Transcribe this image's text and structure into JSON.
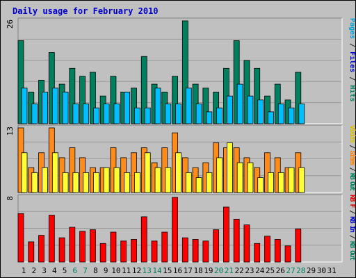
{
  "chart_data": {
    "type": "bar",
    "title": "Daily usage for February 2010",
    "categories": [
      "1",
      "2",
      "3",
      "4",
      "5",
      "6",
      "7",
      "8",
      "9",
      "10",
      "11",
      "12",
      "13",
      "14",
      "15",
      "16",
      "17",
      "18",
      "19",
      "20",
      "21",
      "22",
      "23",
      "24",
      "25",
      "26",
      "27",
      "28",
      "29",
      "30",
      "31"
    ],
    "weekend_days": [
      "6",
      "7",
      "13",
      "14",
      "20",
      "21",
      "27",
      "28"
    ],
    "panels": [
      {
        "ymax": 26,
        "ymax_label": "26",
        "legend": [
          {
            "text": "Pages",
            "color": "#00a0d8"
          },
          {
            "text": " / ",
            "color": "#222222"
          },
          {
            "text": "Files",
            "color": "#0000cc"
          },
          {
            "text": " / ",
            "color": "#222222"
          },
          {
            "text": "Hits",
            "color": "#008060"
          }
        ],
        "series": [
          {
            "name": "Hits",
            "color": "#00805e",
            "values": [
              21,
              8,
              11,
              18,
              10,
              14,
              12,
              13,
              7,
              12,
              8,
              9,
              17,
              10,
              8,
              12,
              26,
              10,
              9,
              8,
              14,
              21,
              16,
              14,
              7,
              10,
              6,
              13,
              null,
              null,
              null
            ]
          },
          {
            "name": "Files",
            "color": "#00bfff",
            "values": [
              9,
              5,
              8,
              9,
              8,
              5,
              5,
              4,
              5,
              5,
              8,
              4,
              4,
              9,
              5,
              5,
              9,
              5,
              3,
              4,
              7,
              10,
              7,
              6,
              3,
              5,
              4,
              5,
              null,
              null,
              null
            ]
          }
        ]
      },
      {
        "ymax": 13,
        "ymax_label": "13",
        "legend": [
          {
            "text": "Visits",
            "color": "#d8c000"
          },
          {
            "text": " / ",
            "color": "#222222"
          },
          {
            "text": "Sites",
            "color": "#ff7f00"
          },
          {
            "text": " / ",
            "color": "#222222"
          },
          {
            "text": "KB Out",
            "color": "#008060"
          }
        ],
        "series": [
          {
            "name": "Sites",
            "color": "#ff8c1a",
            "values": [
              13,
              5,
              8,
              13,
              7,
              9,
              7,
              5,
              5,
              9,
              7,
              8,
              9,
              6,
              9,
              12,
              7,
              5,
              6,
              10,
              9,
              9,
              7,
              5,
              8,
              7,
              5,
              8,
              null,
              null,
              null
            ]
          },
          {
            "name": "Visits",
            "color": "#ffff33",
            "values": [
              8,
              4,
              5,
              8,
              4,
              4,
              4,
              4,
              5,
              5,
              4,
              4,
              8,
              5,
              5,
              8,
              4,
              3,
              4,
              7,
              10,
              6,
              6,
              3,
              4,
              4,
              5,
              5,
              null,
              null,
              null
            ]
          }
        ]
      },
      {
        "ymax": 8,
        "ymax_label": "8",
        "legend": [
          {
            "text": "KB F",
            "color": "#e00000"
          },
          {
            "text": " / ",
            "color": "#222222"
          },
          {
            "text": "KB In",
            "color": "#0000cc"
          },
          {
            "text": " / ",
            "color": "#222222"
          },
          {
            "text": "KB Out",
            "color": "#008060"
          }
        ],
        "series": [
          {
            "name": "KB F",
            "color": "#ff0000",
            "values": [
              6,
              2.5,
              3.3,
              5.8,
              3,
              4.3,
              3.8,
              4,
              2.3,
              3.7,
              2.6,
              2.8,
              5.6,
              2.6,
              3.7,
              8,
              3,
              2.8,
              2.6,
              4,
              6.8,
              5.3,
              4.6,
              2.3,
              3.2,
              2.8,
              2.0,
              4.1,
              null,
              null,
              null
            ]
          }
        ]
      }
    ]
  }
}
